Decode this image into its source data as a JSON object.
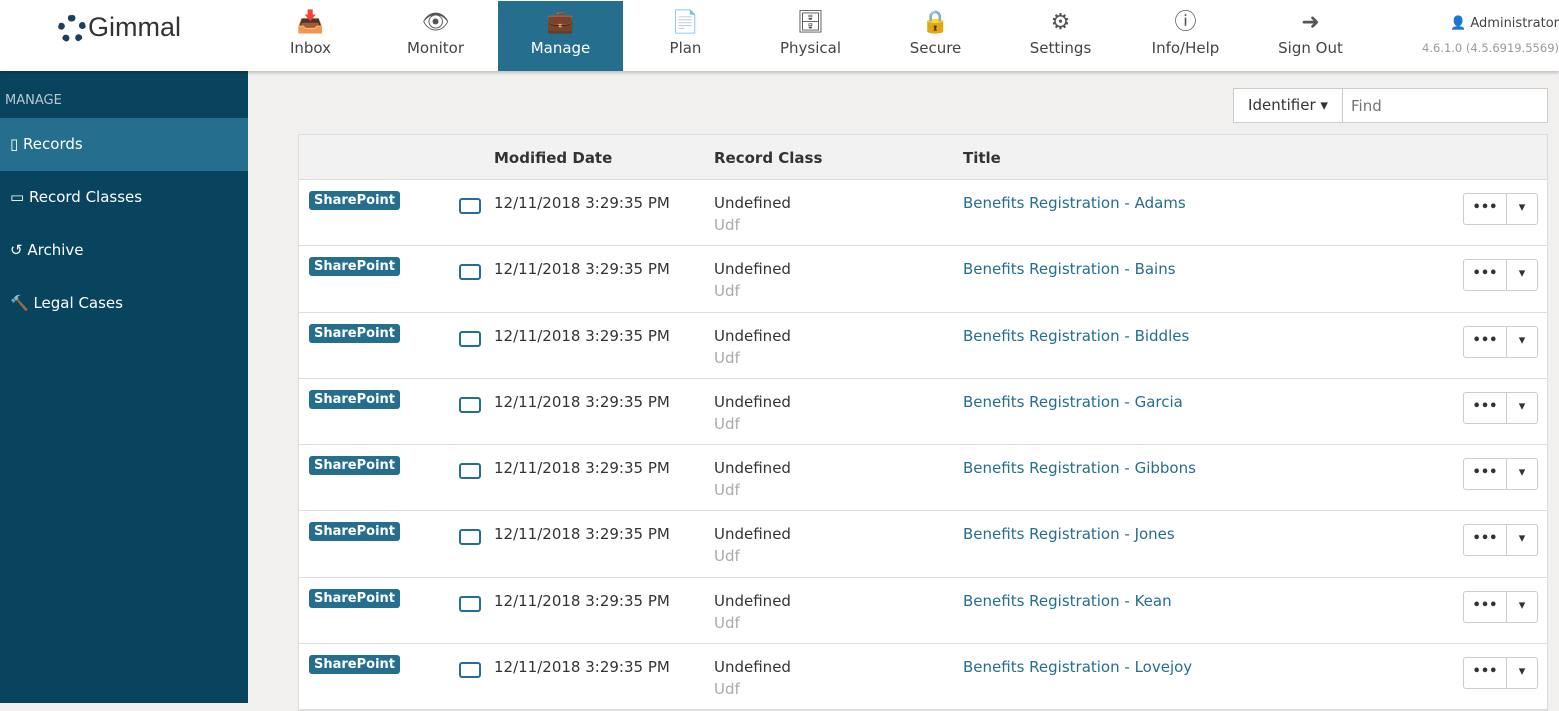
{
  "brand": "Gimmal",
  "nav": [
    {
      "label": "Inbox",
      "icon": "inbox-icon",
      "g": "📥"
    },
    {
      "label": "Monitor",
      "icon": "eye-icon",
      "g": "👁"
    },
    {
      "label": "Manage",
      "icon": "briefcase-icon",
      "g": "💼",
      "active": true
    },
    {
      "label": "Plan",
      "icon": "file-icon",
      "g": "📄"
    },
    {
      "label": "Physical",
      "icon": "archive-box-icon",
      "g": "🗄"
    },
    {
      "label": "Secure",
      "icon": "lock-icon",
      "g": "🔒"
    },
    {
      "label": "Settings",
      "icon": "gears-icon",
      "g": "⚙"
    },
    {
      "label": "Info/Help",
      "icon": "info-icon",
      "g": "ⓘ"
    },
    {
      "label": "Sign Out",
      "icon": "sign-out-icon",
      "g": "➜"
    }
  ],
  "user": {
    "name": "Administrator",
    "version": "4.6.1.0 (4.5.6919.5569)"
  },
  "sidebar": {
    "heading": "MANAGE",
    "items": [
      {
        "label": "Records",
        "icon": "file-icon",
        "g": "▯",
        "active": true
      },
      {
        "label": "Record Classes",
        "icon": "folder-icon",
        "g": "▭"
      },
      {
        "label": "Archive",
        "icon": "history-icon",
        "g": "↺"
      },
      {
        "label": "Legal Cases",
        "icon": "gavel-icon",
        "g": "🔨"
      }
    ]
  },
  "search": {
    "field": "Identifier",
    "placeholder": "Find"
  },
  "table": {
    "headers": [
      "Modified Date",
      "Record Class",
      "Title"
    ],
    "rows": [
      {
        "source": "SharePoint",
        "date": "12/11/2018 3:29:35 PM",
        "class": "Undefined",
        "class_code": "Udf",
        "title": "Benefits Registration - Adams"
      },
      {
        "source": "SharePoint",
        "date": "12/11/2018 3:29:35 PM",
        "class": "Undefined",
        "class_code": "Udf",
        "title": "Benefits Registration - Bains"
      },
      {
        "source": "SharePoint",
        "date": "12/11/2018 3:29:35 PM",
        "class": "Undefined",
        "class_code": "Udf",
        "title": "Benefits Registration - Biddles"
      },
      {
        "source": "SharePoint",
        "date": "12/11/2018 3:29:35 PM",
        "class": "Undefined",
        "class_code": "Udf",
        "title": "Benefits Registration - Garcia"
      },
      {
        "source": "SharePoint",
        "date": "12/11/2018 3:29:35 PM",
        "class": "Undefined",
        "class_code": "Udf",
        "title": "Benefits Registration - Gibbons"
      },
      {
        "source": "SharePoint",
        "date": "12/11/2018 3:29:35 PM",
        "class": "Undefined",
        "class_code": "Udf",
        "title": "Benefits Registration - Jones"
      },
      {
        "source": "SharePoint",
        "date": "12/11/2018 3:29:35 PM",
        "class": "Undefined",
        "class_code": "Udf",
        "title": "Benefits Registration - Kean"
      },
      {
        "source": "SharePoint",
        "date": "12/11/2018 3:29:35 PM",
        "class": "Undefined",
        "class_code": "Udf",
        "title": "Benefits Registration - Lovejoy"
      }
    ]
  },
  "colors": {
    "accent": "#256e8d",
    "sidebar": "#09445f"
  }
}
